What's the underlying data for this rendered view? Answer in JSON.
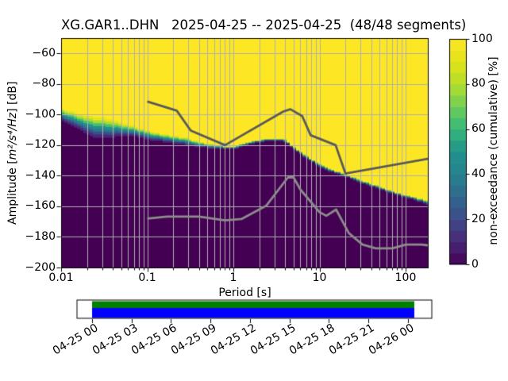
{
  "chart_data": {
    "type": "heatmap",
    "subtype": "ppsd-cumulative-spectrogram",
    "title": "XG.GAR1..DHN   2025-04-25 -- 2025-04-25  (48/48 segments)",
    "xlabel": "Period [s]",
    "ylabel": "Amplitude [m²/s⁴/Hz] [dB]",
    "ylabel_parts": [
      "Amplitude [",
      "m²/s⁴/Hz",
      "] [dB]"
    ],
    "colorbar_label": "non-exceedance (cumulative) [%]",
    "x_scale": "log",
    "grid": true,
    "xlim": [
      0.01,
      185
    ],
    "ylim": [
      -200,
      -50
    ],
    "x_ticks": {
      "values": [
        0.01,
        0.1,
        1,
        10,
        100
      ],
      "labels": [
        "0.01",
        "0.1",
        "1",
        "10",
        "100"
      ]
    },
    "y_ticks": {
      "values": [
        -60,
        -80,
        -100,
        -120,
        -140,
        -160,
        -180,
        -200
      ],
      "labels": [
        "−60",
        "−80",
        "−100",
        "−120",
        "−140",
        "−160",
        "−180",
        "−200"
      ]
    },
    "colorbar": {
      "ticks": [
        0,
        20,
        40,
        60,
        80,
        100
      ],
      "labels": [
        "0",
        "20",
        "40",
        "60",
        "80",
        "100"
      ],
      "steps": 20,
      "range": [
        0,
        100
      ]
    },
    "colors": {
      "background": "#ffffff",
      "grid": "#b0b0b0",
      "frame": "#000000",
      "heatmap_high": "#fde725",
      "heatmap_low": "#440154",
      "nhnm_line": "#595959",
      "nlnm_line": "#8c8c8c",
      "timeline_top_bar": "#008000",
      "timeline_bottom_bar": "#0000ff",
      "viridis_anchors": [
        [
          0.0,
          "#440154"
        ],
        [
          0.1,
          "#482878"
        ],
        [
          0.2,
          "#3e4989"
        ],
        [
          0.3,
          "#31688e"
        ],
        [
          0.4,
          "#26828e"
        ],
        [
          0.5,
          "#21918c"
        ],
        [
          0.6,
          "#35b779"
        ],
        [
          0.7,
          "#6ece58"
        ],
        [
          0.8,
          "#b5de2b"
        ],
        [
          0.9,
          "#dfe318"
        ],
        [
          1.0,
          "#fde725"
        ]
      ]
    },
    "distribution": {
      "note": "non-exceedance boundary of PSD distribution vs period; upper_db = level where cumulative reaches ~100% (yellow above), lower_db = level where ~0% (purple below)",
      "periods": [
        0.01,
        0.013,
        0.016,
        0.02,
        0.026,
        0.032,
        0.042,
        0.055,
        0.07,
        0.09,
        0.112,
        0.14,
        0.2,
        0.28,
        0.35,
        0.53,
        0.76,
        1.0,
        1.2,
        1.45,
        1.9,
        2.5,
        3.0,
        3.9,
        4.5,
        5.2,
        6.9,
        9.2,
        12.2,
        16.3,
        21.5,
        28.5,
        43.6,
        67,
        103,
        158,
        185
      ],
      "upper_db": [
        -95.5,
        -98,
        -100,
        -101,
        -102,
        -102.5,
        -104,
        -106,
        -107.5,
        -109.5,
        -111,
        -112.5,
        -114,
        -115,
        -117,
        -119.2,
        -120.5,
        -121,
        -119.5,
        -118,
        -116.7,
        -116,
        -115.8,
        -116.1,
        -118.8,
        -121.4,
        -126.7,
        -131,
        -134.5,
        -137.2,
        -139.8,
        -142.4,
        -145.9,
        -149.4,
        -152.9,
        -155.5,
        -156.5
      ],
      "lower_db": [
        -104,
        -106.5,
        -109,
        -112.5,
        -115.5,
        -115.5,
        -114.5,
        -113.8,
        -114,
        -115.3,
        -116.5,
        -117.3,
        -118.5,
        -119.5,
        -120.5,
        -121.8,
        -122.3,
        -122.5,
        -121,
        -119.5,
        -118,
        -117.3,
        -117.2,
        -117.4,
        -120,
        -123,
        -128.5,
        -132.5,
        -136,
        -138.7,
        -141.3,
        -144,
        -147.5,
        -151,
        -154.5,
        -157.5,
        -158.8
      ]
    },
    "noise_models": {
      "nhnm": {
        "periods": [
          0.1,
          0.22,
          0.32,
          0.8,
          3.8,
          4.6,
          6.3,
          7.9,
          15.4,
          20.0,
          354.8
        ],
        "db": [
          -91.5,
          -97.4,
          -110.5,
          -120.0,
          -98.0,
          -96.5,
          -101.0,
          -113.5,
          -120.0,
          -138.5,
          -126.0
        ]
      },
      "nlnm": {
        "periods": [
          0.1,
          0.17,
          0.4,
          0.8,
          1.24,
          2.4,
          4.3,
          5.0,
          6.0,
          10.0,
          12.0,
          15.6,
          21.9,
          31.6,
          45.0,
          70.0,
          101.0,
          154.0,
          328.0
        ],
        "db": [
          -168.0,
          -166.7,
          -166.7,
          -169.2,
          -168.3,
          -159.7,
          -141.1,
          -141.1,
          -149.0,
          -163.8,
          -166.2,
          -162.1,
          -177.5,
          -185.0,
          -187.5,
          -187.5,
          -185.0,
          -185.0,
          -187.5
        ]
      }
    },
    "timeline": {
      "tick_hours": [
        0,
        3,
        6,
        9,
        12,
        15,
        18,
        21,
        24
      ],
      "tick_labels": [
        "04-25 00",
        "04-25 03",
        "04-25 06",
        "04-25 09",
        "04-25 12",
        "04-25 15",
        "04-25 18",
        "04-25 21",
        "04-26 00"
      ],
      "bars": [
        {
          "row": "top",
          "color": "#008000",
          "start_hours": 0,
          "end_hours": 24.5
        },
        {
          "row": "bottom",
          "color": "#0000ff",
          "start_hours": 0,
          "end_hours": 24.5
        }
      ]
    }
  }
}
